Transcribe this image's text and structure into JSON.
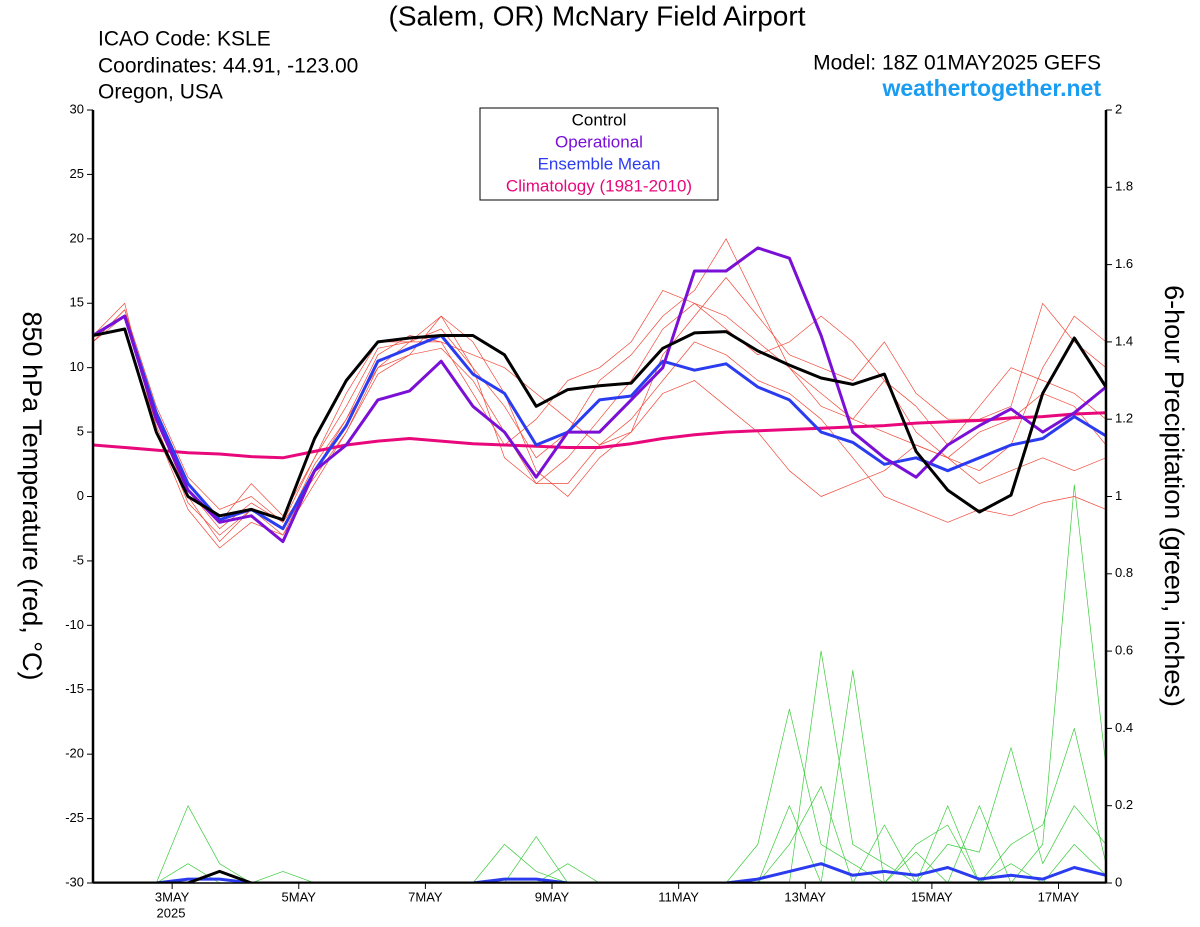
{
  "chart_data": {
    "type": "line",
    "title": "(Salem, OR) McNary Field Airport",
    "info_left": [
      "ICAO Code: KSLE",
      "Coordinates: 44.91, -123.00",
      "Oregon, USA"
    ],
    "model": "Model: 18Z 01MAY2025 GEFS",
    "site": "weathertogether.net",
    "ylabel": "850 hPa Temperature (red, °C)",
    "y2label": "6-hour Precipitation (green, inches)",
    "year": "2025",
    "x": [
      0,
      12,
      24,
      36,
      48,
      60,
      72,
      84,
      96,
      108,
      120,
      132,
      144,
      156,
      168,
      180,
      192,
      204,
      216,
      228,
      240,
      252,
      264,
      276,
      288,
      300,
      312,
      324,
      336,
      348,
      360,
      372,
      384
    ],
    "xlim": [
      0,
      384
    ],
    "xticks": [
      {
        "value": 30,
        "label": "3MAY"
      },
      {
        "value": 78,
        "label": "5MAY"
      },
      {
        "value": 126,
        "label": "7MAY"
      },
      {
        "value": 174,
        "label": "9MAY"
      },
      {
        "value": 222,
        "label": "11MAY"
      },
      {
        "value": 270,
        "label": "13MAY"
      },
      {
        "value": 318,
        "label": "15MAY"
      },
      {
        "value": 366,
        "label": "17MAY"
      }
    ],
    "ylim": [
      -30,
      30
    ],
    "yticks": [
      -30,
      -25,
      -20,
      -15,
      -10,
      -5,
      0,
      5,
      10,
      15,
      20,
      25,
      30
    ],
    "y2lim": [
      0,
      2
    ],
    "y2ticks": [
      0,
      0.2,
      0.4,
      0.6,
      0.8,
      1,
      1.2,
      1.4,
      1.6,
      1.8,
      2
    ],
    "series": [
      {
        "name": "Control",
        "color": "#000000",
        "linewidth": 3,
        "values": [
          12.5,
          13,
          5,
          0,
          -1.5,
          -1,
          -1.8,
          4.5,
          9,
          12,
          12.3,
          12.5,
          12.5,
          11,
          7,
          8.3,
          8.6,
          8.8,
          11.5,
          12.7,
          12.8,
          11.3,
          10.2,
          9.2,
          8.7,
          9.5,
          3.5,
          0.5,
          -1.2,
          0.1,
          8,
          12.3,
          8.5
        ]
      },
      {
        "name": "Operational",
        "color": "#7a0fd6",
        "linewidth": 3,
        "values": [
          12.5,
          14,
          6,
          0.5,
          -2,
          -1.5,
          -3.5,
          2,
          4,
          7.5,
          8.2,
          10.5,
          7,
          5,
          1.5,
          5,
          5,
          7.5,
          10,
          17.5,
          17.5,
          19.3,
          18.5,
          12.5,
          5,
          3,
          1.5,
          4,
          5.5,
          6.8,
          5,
          6.5,
          8.5
        ]
      },
      {
        "name": "Ensemble Mean",
        "color": "#2b3cf0",
        "linewidth": 3,
        "values": [
          12.5,
          14,
          6.5,
          1,
          -1.8,
          -1,
          -2.5,
          2,
          5.5,
          10.5,
          11.5,
          12.5,
          9.5,
          8,
          4,
          5,
          7.5,
          7.8,
          10.5,
          9.8,
          10.3,
          8.5,
          7.5,
          5,
          4.2,
          2.5,
          3,
          2,
          3,
          4,
          4.5,
          6.2,
          4.7
        ]
      },
      {
        "name": "Climatology (1981-2010)",
        "color": "#e8087c",
        "linewidth": 3,
        "values": [
          4,
          3.8,
          3.6,
          3.4,
          3.3,
          3.1,
          3,
          3.5,
          4,
          4.3,
          4.5,
          4.3,
          4.1,
          4,
          3.9,
          3.8,
          3.8,
          4.1,
          4.5,
          4.8,
          5,
          5.1,
          5.2,
          5.3,
          5.4,
          5.5,
          5.7,
          5.8,
          5.9,
          6.1,
          6.2,
          6.4,
          6.5
        ]
      },
      {
        "color": "#f04a3a",
        "linewidth": 0.7,
        "values": [
          12,
          14.5,
          6,
          0.5,
          -2.5,
          -0.5,
          -2,
          3,
          7,
          11.5,
          12,
          13,
          10,
          7,
          3,
          5,
          9,
          11,
          14,
          16,
          20,
          15,
          10,
          7,
          6,
          9,
          5,
          3,
          2,
          4,
          10,
          14,
          12
        ]
      },
      {
        "color": "#f04a3a",
        "linewidth": 0.7,
        "values": [
          12.5,
          14,
          5.5,
          -0.5,
          -3,
          -1,
          -2.5,
          2.5,
          6,
          11,
          12.5,
          12,
          11,
          10,
          8,
          6,
          4,
          6,
          9,
          12,
          11,
          9,
          8,
          6,
          3,
          0,
          -1,
          -2,
          -1,
          -1.5,
          -0.5,
          0,
          -1
        ]
      },
      {
        "color": "#f04a3a",
        "linewidth": 0.7,
        "values": [
          12,
          14.5,
          7,
          1.5,
          -1,
          0,
          -2,
          1.5,
          5,
          10,
          11,
          11.5,
          9,
          5,
          1,
          3,
          6,
          9,
          13,
          15,
          14,
          12,
          10,
          8,
          6,
          5,
          4,
          3,
          5,
          6,
          8,
          7,
          4
        ]
      },
      {
        "color": "#f04a3a",
        "linewidth": 0.7,
        "values": [
          12.5,
          14,
          6,
          0,
          -3.5,
          -1,
          -3,
          1,
          5,
          9.5,
          11,
          14,
          12,
          8,
          2,
          0,
          3,
          5,
          8,
          9,
          7,
          5,
          2,
          0,
          1,
          2,
          4,
          3,
          1,
          2,
          3,
          2,
          3
        ]
      },
      {
        "color": "#f04a3a",
        "linewidth": 0.7,
        "values": [
          12,
          14,
          6.5,
          1,
          -2,
          1,
          -1.5,
          3,
          8,
          12,
          12,
          12,
          8,
          4,
          6,
          9,
          10,
          12,
          16,
          15,
          13,
          11,
          12,
          14,
          12,
          9,
          7,
          4,
          7,
          10,
          9,
          8,
          6
        ]
      },
      {
        "color": "#f04a3a",
        "linewidth": 0.7,
        "values": [
          12.5,
          15,
          5,
          -1,
          -4,
          -2,
          -3,
          2,
          6,
          10,
          12,
          14,
          10,
          3,
          1,
          1,
          4,
          5,
          11,
          14,
          17,
          14,
          11,
          10,
          9,
          12,
          8,
          6,
          6,
          7,
          15,
          12,
          10
        ]
      },
      {
        "color": "#3ccc3c",
        "linewidth": 0.7,
        "axis": "y2",
        "values": [
          0,
          0,
          0,
          0.2,
          0.05,
          0,
          0,
          0,
          0,
          0,
          0,
          0,
          0,
          0.1,
          0.03,
          0,
          0,
          0,
          0,
          0,
          0,
          0.1,
          0.45,
          0.1,
          0.05,
          0,
          0.1,
          0.15,
          0,
          0.05,
          0,
          0.1,
          0.02
        ]
      },
      {
        "color": "#3ccc3c",
        "linewidth": 0.7,
        "axis": "y2",
        "values": [
          0,
          0,
          0,
          0,
          0,
          0,
          0,
          0,
          0,
          0,
          0,
          0,
          0,
          0,
          0,
          0,
          0,
          0,
          0,
          0,
          0,
          0,
          0,
          0.6,
          0.1,
          0.05,
          0,
          0.1,
          0.08,
          0.35,
          0.05,
          0.2,
          0.1
        ]
      },
      {
        "color": "#3ccc3c",
        "linewidth": 0.7,
        "axis": "y2",
        "values": [
          0,
          0,
          0,
          0.05,
          0,
          0,
          0,
          0,
          0,
          0,
          0,
          0,
          0,
          0,
          0.12,
          0,
          0,
          0,
          0,
          0,
          0,
          0,
          0.2,
          0,
          0.55,
          0,
          0.08,
          0,
          0.2,
          0,
          0.1,
          1.03,
          0.3
        ]
      },
      {
        "color": "#3ccc3c",
        "linewidth": 0.7,
        "axis": "y2",
        "values": [
          0,
          0,
          0,
          0,
          0.03,
          0,
          0.03,
          0,
          0,
          0,
          0,
          0,
          0,
          0,
          0,
          0.05,
          0,
          0,
          0,
          0,
          0,
          0,
          0.1,
          0.25,
          0,
          0.15,
          0,
          0.2,
          0,
          0.1,
          0.15,
          0.4,
          0.05
        ]
      },
      {
        "color": "#2b3cf0",
        "linewidth": 3,
        "axis": "y2",
        "values": [
          0,
          0,
          0,
          0.01,
          0.01,
          0,
          0,
          0,
          0,
          0,
          0,
          0,
          0,
          0.01,
          0.01,
          0,
          0,
          0,
          0,
          0,
          0,
          0.01,
          0.03,
          0.05,
          0.02,
          0.03,
          0.02,
          0.04,
          0.01,
          0.02,
          0.01,
          0.04,
          0.02
        ]
      },
      {
        "color": "#000000",
        "linewidth": 3,
        "axis": "y2",
        "values": [
          0,
          0,
          0,
          0,
          0.03,
          0,
          0,
          0,
          0,
          0,
          0,
          0,
          0,
          0,
          0,
          0,
          0,
          0,
          0,
          0,
          0,
          0,
          0,
          0,
          0,
          0,
          0,
          0,
          0,
          0,
          0,
          0,
          0
        ]
      }
    ]
  }
}
